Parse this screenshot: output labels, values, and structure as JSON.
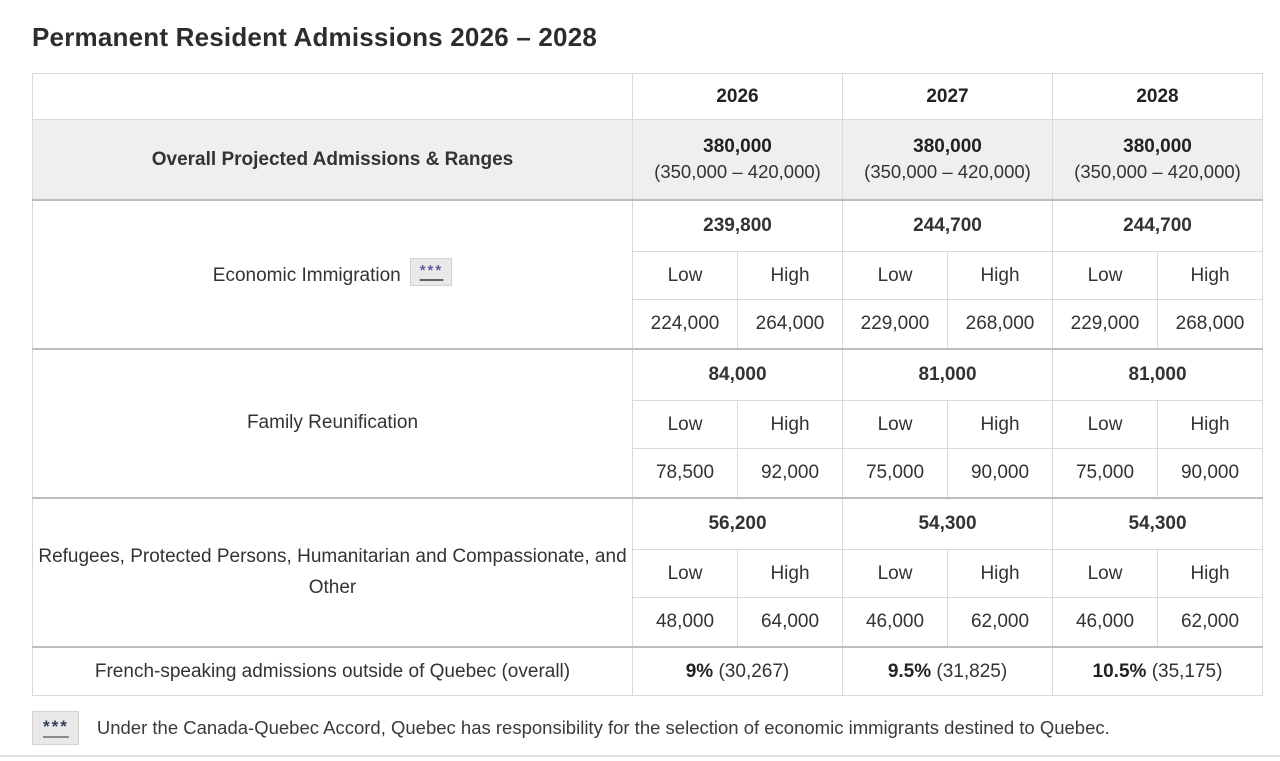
{
  "title": "Permanent Resident Admissions 2026 – 2028",
  "table": {
    "years": [
      "2026",
      "2027",
      "2028"
    ],
    "sub_headers": {
      "low": "Low",
      "high": "High"
    },
    "overall_row": {
      "label": "Overall Projected Admissions & Ranges",
      "values": [
        {
          "target": "380,000",
          "range": "(350,000 – 420,000)"
        },
        {
          "target": "380,000",
          "range": "(350,000 – 420,000)"
        },
        {
          "target": "380,000",
          "range": "(350,000 – 420,000)"
        }
      ]
    },
    "sections": [
      {
        "label": "Economic Immigration",
        "footnote_marker": "***",
        "targets": [
          "239,800",
          "244,700",
          "244,700"
        ],
        "lows": [
          "224,000",
          "229,000",
          "229,000"
        ],
        "highs": [
          "264,000",
          "268,000",
          "268,000"
        ]
      },
      {
        "label": "Family Reunification",
        "targets": [
          "84,000",
          "81,000",
          "81,000"
        ],
        "lows": [
          "78,500",
          "75,000",
          "75,000"
        ],
        "highs": [
          "92,000",
          "90,000",
          "90,000"
        ]
      },
      {
        "label": "Refugees, Protected Persons, Humanitarian and Compassionate, and Other",
        "targets": [
          "56,200",
          "54,300",
          "54,300"
        ],
        "lows": [
          "48,000",
          "46,000",
          "46,000"
        ],
        "highs": [
          "64,000",
          "62,000",
          "62,000"
        ]
      }
    ],
    "french_row": {
      "label": "French-speaking admissions outside of Quebec (overall)",
      "values": [
        {
          "percent": "9%",
          "count": "(30,267)"
        },
        {
          "percent": "9.5%",
          "count": "(31,825)"
        },
        {
          "percent": "10.5%",
          "count": "(35,175)"
        }
      ]
    }
  },
  "footnote": {
    "marker": "***",
    "text": "Under the Canada-Quebec Accord, Quebec has responsibility for the selection of economic immigrants destined to Quebec."
  },
  "colors": {
    "overall_row_bg": "#efefef",
    "marker_purple": "#6b5b9e",
    "marker_navy": "#333f58"
  }
}
